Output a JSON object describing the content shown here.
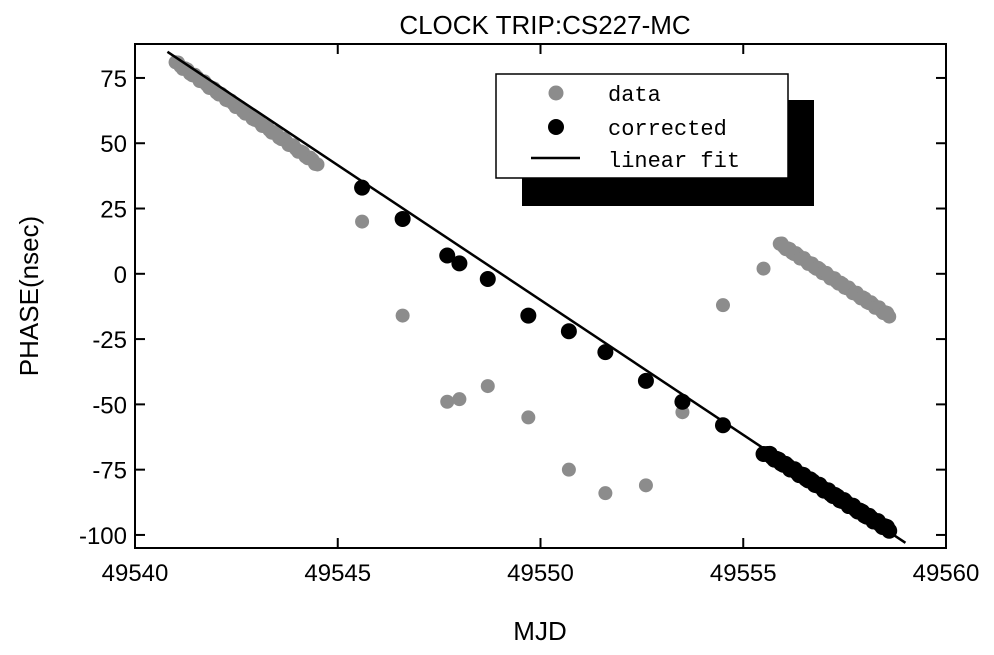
{
  "chart_data": {
    "type": "scatter",
    "title": "CLOCK TRIP:CS227-MC",
    "xlabel": "MJD",
    "ylabel": "PHASE(nsec)",
    "xlim": [
      49540,
      49560
    ],
    "ylim": [
      -105,
      88
    ],
    "xticks": [
      49540,
      49545,
      49550,
      49555,
      49560
    ],
    "yticks": [
      75,
      50,
      25,
      0,
      -25,
      -50,
      -75,
      -100
    ],
    "grid": false,
    "legend_position": "top-right",
    "colors": {
      "data": "#8c8c8c",
      "corrected": "#000000",
      "fit": "#000000",
      "shadow": "#000000"
    },
    "series": [
      {
        "name": "data",
        "marker": "gray-dot",
        "segments": [
          {
            "x_start": 49541.0,
            "x_end": 49544.5,
            "y_start": 81,
            "y_end": 42,
            "n": 60
          },
          {
            "x_start": 49555.9,
            "x_end": 49558.6,
            "y_start": 11.5,
            "y_end": -16,
            "n": 55
          }
        ],
        "points": [
          [
            49545.6,
            20
          ],
          [
            49546.6,
            -16
          ],
          [
            49547.7,
            -49
          ],
          [
            49548.0,
            -48
          ],
          [
            49548.7,
            -43
          ],
          [
            49549.7,
            -55
          ],
          [
            49550.7,
            -75
          ],
          [
            49551.6,
            -84
          ],
          [
            49552.6,
            -81
          ],
          [
            49553.5,
            -53
          ],
          [
            49554.5,
            -12
          ],
          [
            49555.5,
            2
          ]
        ]
      },
      {
        "name": "corrected",
        "marker": "black-dot",
        "segments": [
          {
            "x_start": 49541.0,
            "x_end": 49544.5,
            "y_start": 81,
            "y_end": 42,
            "n": 60
          },
          {
            "x_start": 49555.6,
            "x_end": 49558.6,
            "y_start": -69,
            "y_end": -98,
            "n": 55
          }
        ],
        "points": [
          [
            49545.6,
            33
          ],
          [
            49546.6,
            21
          ],
          [
            49547.7,
            7
          ],
          [
            49548.0,
            4
          ],
          [
            49548.7,
            -2
          ],
          [
            49549.7,
            -16
          ],
          [
            49550.7,
            -22
          ],
          [
            49551.6,
            -30
          ],
          [
            49552.6,
            -41
          ],
          [
            49553.5,
            -49
          ],
          [
            49554.5,
            -58
          ],
          [
            49555.5,
            -69
          ]
        ]
      },
      {
        "name": "linear fit",
        "marker": "line",
        "x": [
          49540.8,
          49559.0
        ],
        "y": [
          85,
          -103
        ]
      }
    ]
  }
}
